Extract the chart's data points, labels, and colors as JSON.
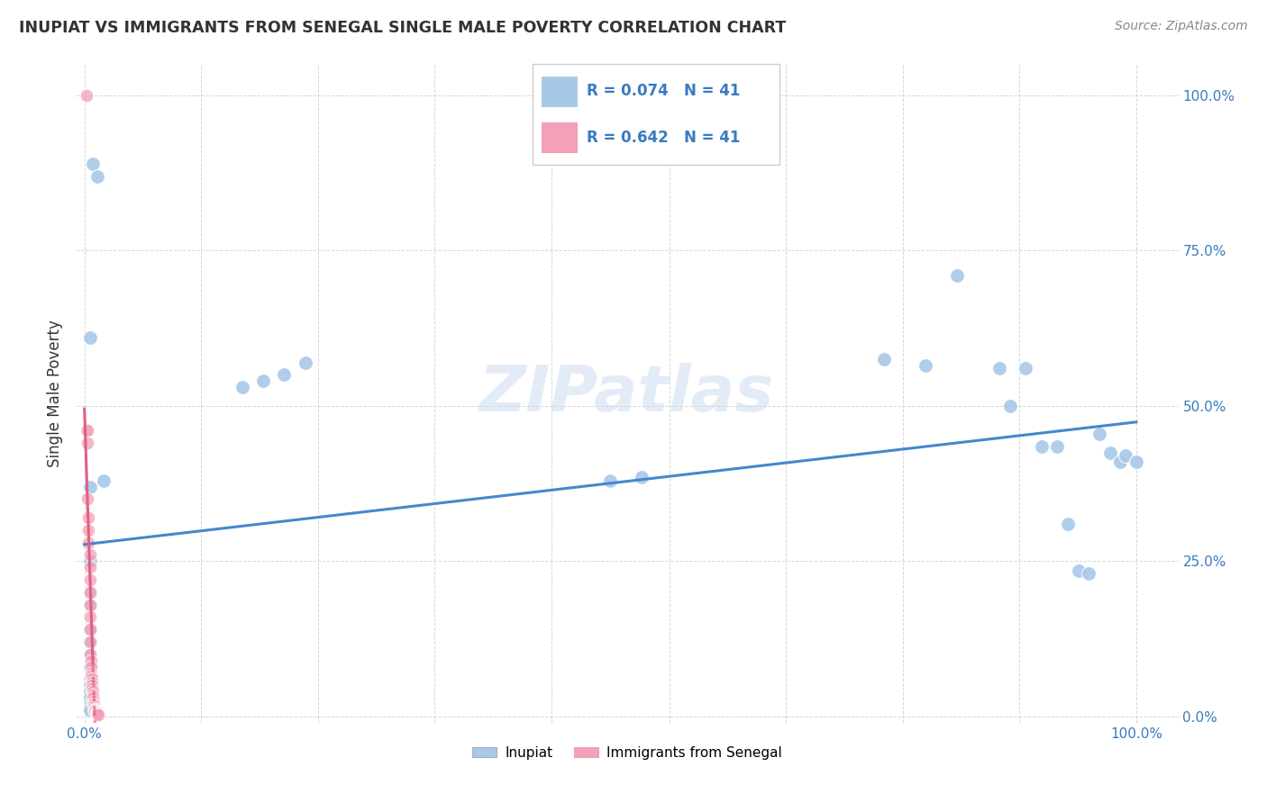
{
  "title": "INUPIAT VS IMMIGRANTS FROM SENEGAL SINGLE MALE POVERTY CORRELATION CHART",
  "source": "Source: ZipAtlas.com",
  "ylabel": "Single Male Poverty",
  "inupiat_R": 0.074,
  "inupiat_N": 41,
  "senegal_R": 0.642,
  "senegal_N": 41,
  "inupiat_color": "#a8c8e8",
  "senegal_color": "#f4a0b8",
  "inupiat_line_color": "#4488cc",
  "senegal_line_color": "#e06080",
  "background_color": "#ffffff",
  "grid_color": "#cccccc",
  "watermark": "ZIPatlas",
  "inupiat_x": [
    0.005,
    0.008,
    0.012,
    0.018,
    0.005,
    0.005,
    0.005,
    0.005,
    0.005,
    0.005,
    0.005,
    0.005,
    0.005,
    0.005,
    0.005,
    0.005,
    0.005,
    0.005,
    0.15,
    0.17,
    0.19,
    0.21,
    0.5,
    0.53,
    0.76,
    0.8,
    0.83,
    0.87,
    0.88,
    0.895,
    0.91,
    0.925,
    0.935,
    0.945,
    0.955,
    0.965,
    0.975,
    0.985,
    0.99,
    1.0,
    0.005
  ],
  "inupiat_y": [
    0.61,
    0.89,
    0.87,
    0.38,
    0.37,
    0.2,
    0.18,
    0.14,
    0.12,
    0.1,
    0.08,
    0.06,
    0.05,
    0.04,
    0.03,
    0.02,
    0.015,
    0.01,
    0.53,
    0.54,
    0.55,
    0.57,
    0.38,
    0.385,
    0.575,
    0.565,
    0.71,
    0.56,
    0.5,
    0.56,
    0.435,
    0.435,
    0.31,
    0.235,
    0.23,
    0.455,
    0.425,
    0.41,
    0.42,
    0.41,
    0.25
  ],
  "senegal_x": [
    0.002,
    0.002,
    0.003,
    0.003,
    0.003,
    0.004,
    0.004,
    0.004,
    0.005,
    0.005,
    0.005,
    0.005,
    0.005,
    0.005,
    0.005,
    0.005,
    0.005,
    0.006,
    0.006,
    0.006,
    0.006,
    0.007,
    0.007,
    0.007,
    0.007,
    0.008,
    0.008,
    0.008,
    0.009,
    0.009,
    0.009,
    0.009,
    0.01,
    0.01,
    0.01,
    0.01,
    0.011,
    0.011,
    0.012,
    0.012,
    0.013
  ],
  "senegal_y": [
    1.0,
    0.46,
    0.46,
    0.44,
    0.35,
    0.32,
    0.3,
    0.28,
    0.26,
    0.24,
    0.22,
    0.2,
    0.18,
    0.16,
    0.14,
    0.12,
    0.1,
    0.09,
    0.08,
    0.07,
    0.065,
    0.06,
    0.055,
    0.05,
    0.045,
    0.04,
    0.035,
    0.03,
    0.025,
    0.02,
    0.018,
    0.015,
    0.012,
    0.01,
    0.009,
    0.008,
    0.007,
    0.006,
    0.005,
    0.004,
    0.003
  ],
  "ytick_values": [
    0.0,
    0.25,
    0.5,
    0.75,
    1.0
  ],
  "ytick_labels": [
    "0.0%",
    "25.0%",
    "50.0%",
    "75.0%",
    "100.0%"
  ],
  "xtick_values": [
    0.0,
    0.111,
    0.222,
    0.333,
    0.444,
    0.556,
    0.667,
    0.778,
    0.889,
    1.0
  ],
  "xtick_labels": [
    "0.0%",
    "",
    "",
    "",
    "",
    "",
    "",
    "",
    "",
    "100.0%"
  ]
}
